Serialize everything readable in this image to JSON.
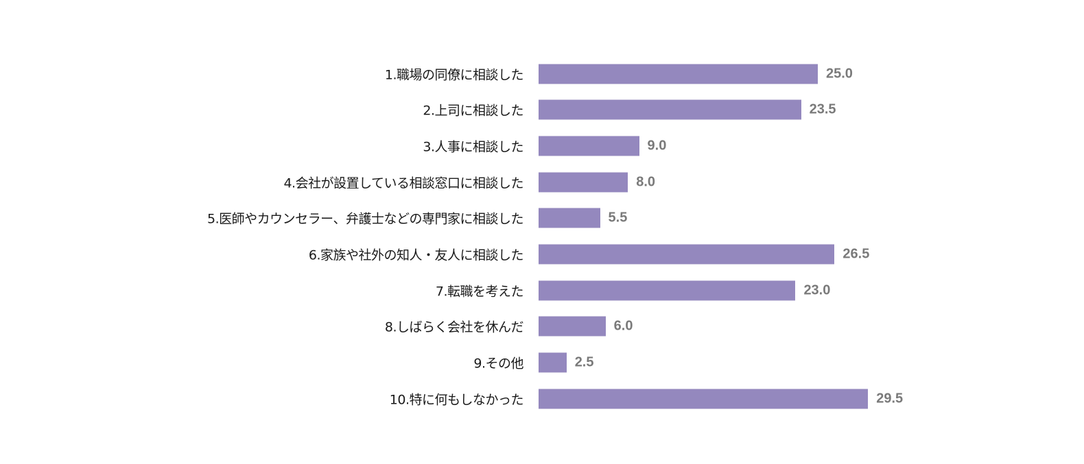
{
  "chart_data": {
    "type": "bar",
    "orientation": "horizontal",
    "categories": [
      "1.職場の同僚に相談した",
      "2.上司に相談した",
      "3.人事に相談した",
      "4.会社が設置している相談窓口に相談した",
      "5.医師やカウンセラー、弁護士などの専門家に相談した",
      "6.家族や社外の知人・友人に相談した",
      "7.転職を考えた",
      "8.しばらく会社を休んだ",
      "9.その他",
      "10.特に何もしなかった"
    ],
    "values": [
      25.0,
      23.5,
      9.0,
      8.0,
      5.5,
      26.5,
      23.0,
      6.0,
      2.5,
      29.5
    ],
    "value_labels": [
      "25.0",
      "23.5",
      "9.0",
      "8.0",
      "5.5",
      "26.5",
      "23.0",
      "6.0",
      "2.5",
      "29.5"
    ],
    "bar_color": "#9488be",
    "grid": false,
    "legend": "none"
  }
}
